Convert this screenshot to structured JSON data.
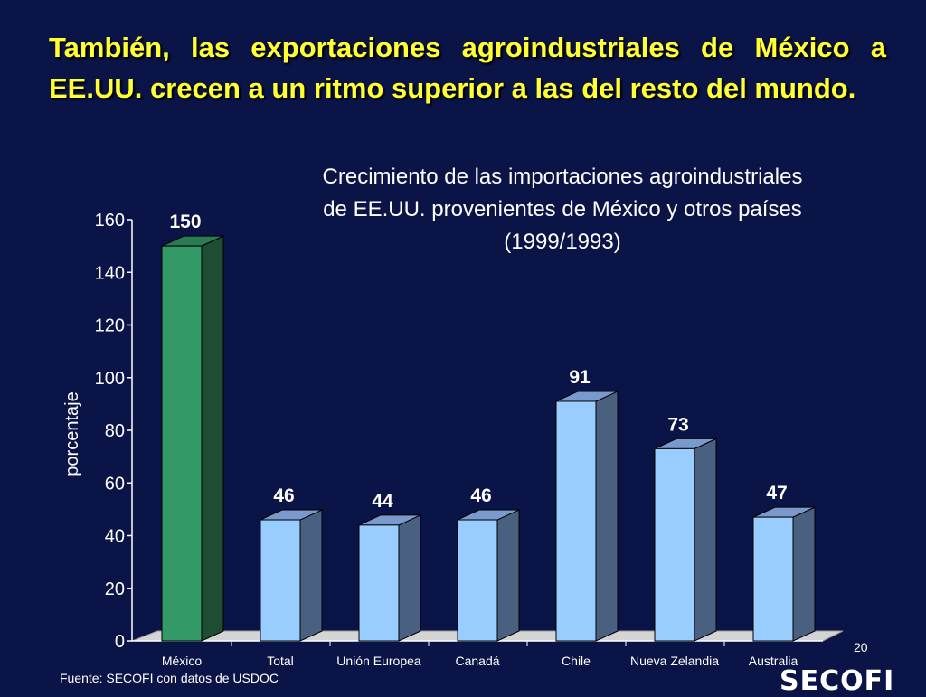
{
  "slide": {
    "headline": "También, las exportaciones agroindustriales de México a EE.UU.  crecen a un ritmo superior a las del resto del mundo.",
    "source": "Fuente: SECOFI con datos de USDOC",
    "page_number": "20",
    "logo_text": "SECOFI"
  },
  "chart_data": {
    "type": "bar",
    "title_lines": [
      "Crecimiento de las importaciones agroindustriales",
      "de EE.UU. provenientes de México y otros países",
      "(1999/1993)"
    ],
    "categories": [
      "México",
      "Total",
      "Unión Europea",
      "Canadá",
      "Chile",
      "Nueva Zelandia",
      "Australia"
    ],
    "values": [
      150,
      46,
      44,
      46,
      91,
      73,
      47
    ],
    "data_labels": [
      "150",
      "46",
      "44",
      "46",
      "91",
      "73",
      "47"
    ],
    "ylabel": "porcentaje",
    "ylim": [
      0,
      160
    ],
    "yticks": [
      0,
      20,
      40,
      60,
      80,
      100,
      120,
      140,
      160
    ],
    "grid": false,
    "three_d": true,
    "colors": {
      "highlight_front": "#339966",
      "highlight_side": "#1e4d33",
      "highlight_top": "#2a7a52",
      "bar_front": "#99ccff",
      "bar_side": "#4a6080",
      "bar_top": "#7a99cc",
      "floor": "#d4d4d4",
      "axis": "#ffffff"
    }
  }
}
